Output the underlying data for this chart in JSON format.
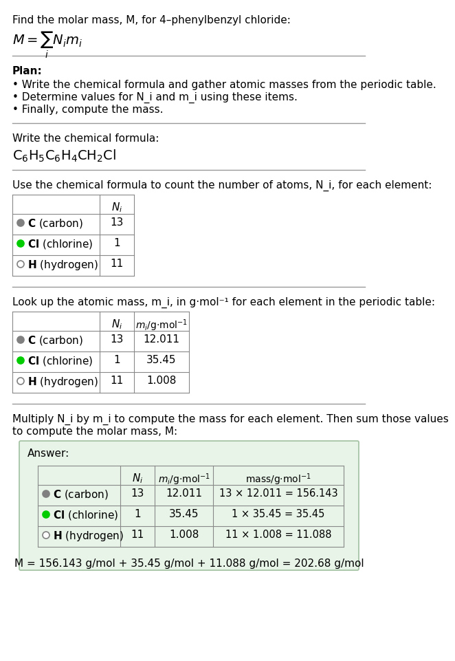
{
  "title_line1": "Find the molar mass, M, for 4–phenylbenzyl chloride:",
  "formula_display": "M = ∑ N_i m_i",
  "plan_header": "Plan:",
  "plan_bullets": [
    "• Write the chemical formula and gather atomic masses from the periodic table.",
    "• Determine values for N_i and m_i using these items.",
    "• Finally, compute the mass."
  ],
  "formula_label": "Write the chemical formula:",
  "chemical_formula": "C₆H₅C₆H₄CH₂Cl",
  "table1_header": "Use the chemical formula to count the number of atoms, N_i, for each element:",
  "table2_header": "Look up the atomic mass, m_i, in g·mol⁻¹ for each element in the periodic table:",
  "table3_header": "Multiply N_i by m_i to compute the mass for each element. Then sum those values\nto compute the molar mass, M:",
  "elements": [
    "C (carbon)",
    "Cl (chlorine)",
    "H (hydrogen)"
  ],
  "element_symbols": [
    "C",
    "Cl",
    "H"
  ],
  "dot_colors": [
    "#808080",
    "#00cc00",
    "#ffffff"
  ],
  "dot_edge_colors": [
    "#808080",
    "#00cc00",
    "#808080"
  ],
  "N_i": [
    13,
    1,
    11
  ],
  "m_i": [
    "12.011",
    "35.45",
    "1.008"
  ],
  "mass_expr": [
    "13 × 12.011 = 156.143",
    "1 × 35.45 = 35.45",
    "11 × 1.008 = 11.088"
  ],
  "final_answer": "M = 156.143 g/mol + 35.45 g/mol + 11.088 g/mol = 202.68 g/mol",
  "answer_bg": "#e8f4e8",
  "answer_border": "#a0c0a0",
  "bg_color": "#ffffff",
  "text_color": "#000000",
  "table_line_color": "#aaaaaa"
}
